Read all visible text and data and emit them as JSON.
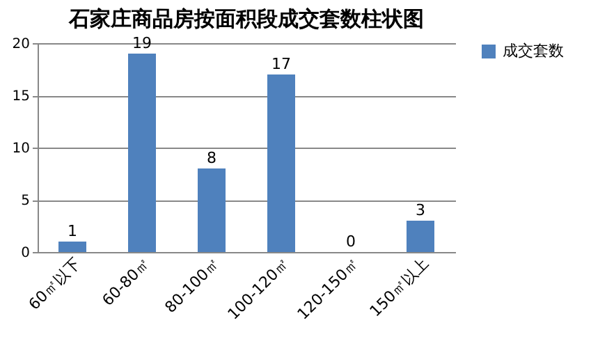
{
  "chart_data": {
    "type": "bar",
    "title": "石家庄商品房按面积段成交套数柱状图",
    "categories": [
      "60㎡以下",
      "60-80㎡",
      "80-100㎡",
      "100-120㎡",
      "120-150㎡",
      "150㎡以上"
    ],
    "series": [
      {
        "name": "成交套数",
        "color": "#4f81bd",
        "values": [
          1,
          19,
          8,
          17,
          0,
          3
        ]
      }
    ],
    "ylim": [
      0,
      20
    ],
    "yticks": [
      0,
      5,
      10,
      15,
      20
    ],
    "grid": "y",
    "legend": "right",
    "data_labels": true
  }
}
